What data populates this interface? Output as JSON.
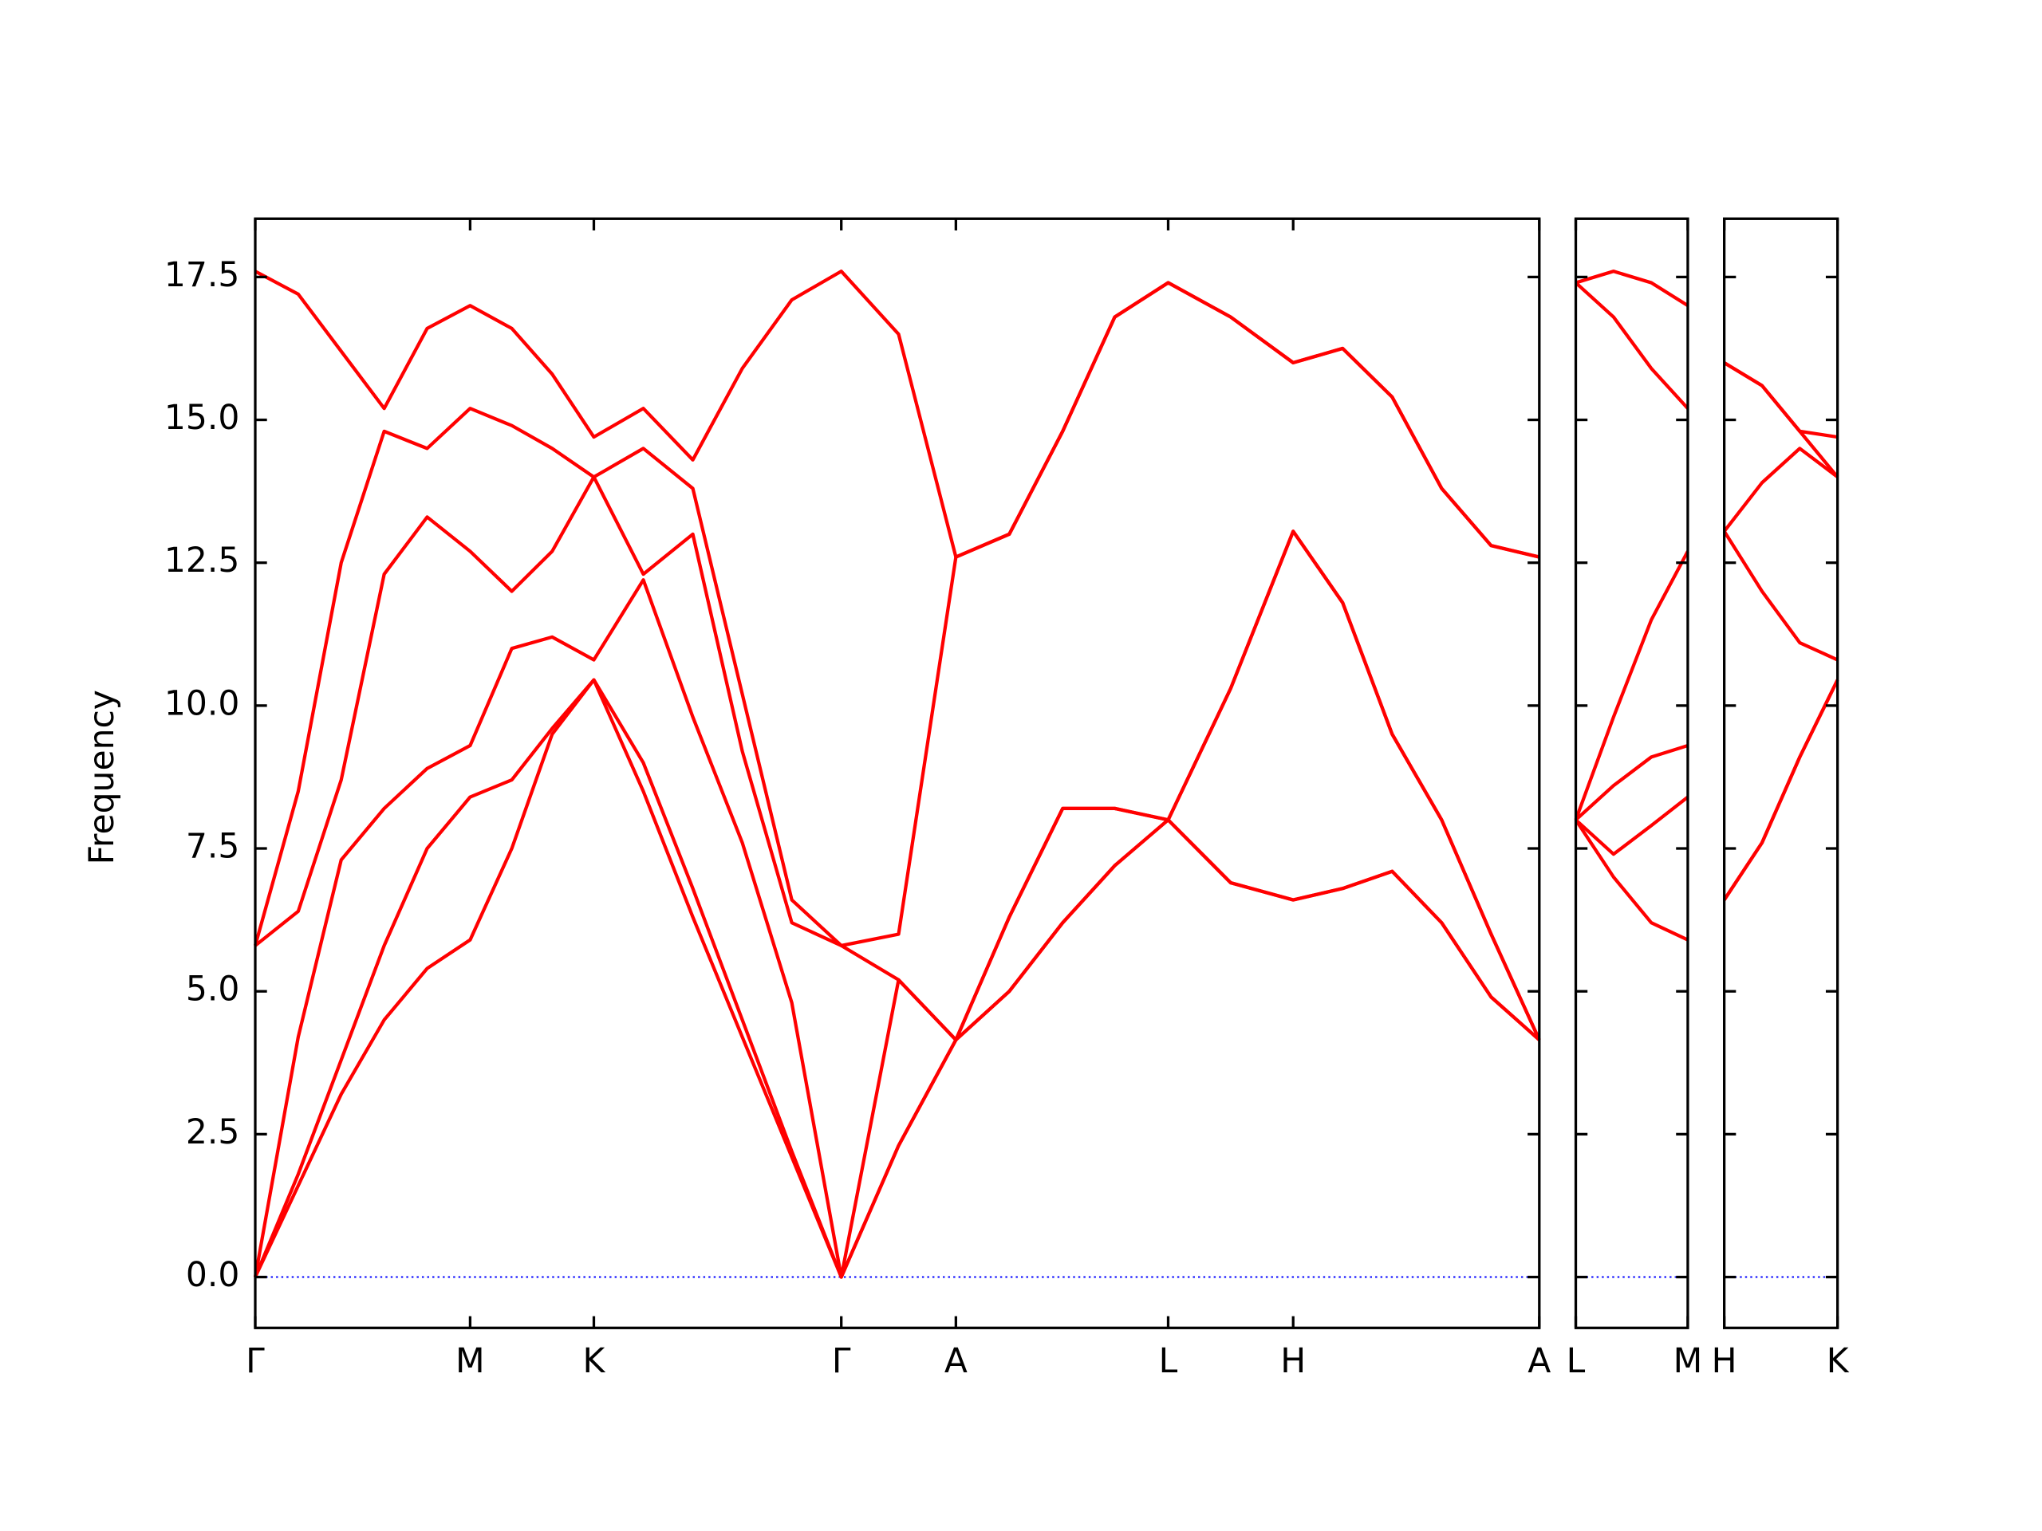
{
  "chart_data": [
    {
      "type": "line",
      "ylabel": "Frequency",
      "ylim": [
        -0.89,
        18.52
      ],
      "yticks": [
        {
          "value": 0,
          "label": "0.0"
        },
        2.5,
        {
          "value": 5,
          "label": "5.0"
        },
        7.5,
        {
          "value": 10,
          "label": "10.0"
        },
        12.5,
        {
          "value": 15,
          "label": "15.0"
        },
        17.5
      ],
      "hline": 0,
      "hline_color": "#0000ff",
      "xlim": [
        0,
        9.86
      ],
      "xticks": [
        {
          "value": 0,
          "label": "Γ"
        },
        {
          "value": 1.65,
          "label": "M"
        },
        {
          "value": 2.6,
          "label": "K"
        },
        {
          "value": 4.5,
          "label": "Γ"
        },
        {
          "value": 5.38,
          "label": "A"
        },
        {
          "value": 7.01,
          "label": "L"
        },
        {
          "value": 7.97,
          "label": "H"
        },
        {
          "value": 9.86,
          "label": "A"
        }
      ],
      "x": [
        0,
        0.33,
        0.66,
        0.99,
        1.32,
        1.65,
        1.97,
        2.28,
        2.6,
        2.98,
        3.36,
        3.74,
        4.12,
        4.5,
        4.94,
        5.38,
        5.79,
        6.2,
        6.6,
        7.01,
        7.49,
        7.97,
        8.35,
        8.73,
        9.11,
        9.49,
        9.86
      ],
      "series": [
        {
          "color": "#ff0000",
          "values": [
            0,
            1.6,
            3.2,
            4.5,
            5.4,
            5.9,
            7.5,
            9.5,
            10.45,
            8.5,
            6.3,
            4.2,
            2.1,
            0,
            2.3,
            4.15,
            5.0,
            6.2,
            7.2,
            8.0,
            6.9,
            6.6,
            6.8,
            7.1,
            6.2,
            4.9,
            4.15
          ]
        },
        {
          "color": "#ff0000",
          "values": [
            0,
            1.8,
            3.8,
            5.8,
            7.5,
            8.4,
            8.7,
            9.6,
            10.45,
            9.0,
            6.8,
            4.5,
            2.2,
            0,
            2.3,
            4.15,
            5.0,
            6.2,
            7.2,
            8.0,
            6.9,
            6.6,
            6.8,
            7.1,
            6.2,
            4.9,
            4.15
          ]
        },
        {
          "color": "#ff0000",
          "values": [
            0,
            4.2,
            7.3,
            8.2,
            8.9,
            9.3,
            11.0,
            11.2,
            10.8,
            12.2,
            9.8,
            7.6,
            4.8,
            0,
            5.2,
            4.15,
            6.3,
            8.2,
            8.2,
            8.0,
            10.3,
            13.05,
            11.8,
            9.5,
            8.0,
            6.0,
            4.15
          ]
        },
        {
          "color": "#ff0000",
          "values": [
            5.8,
            6.4,
            8.7,
            12.3,
            13.3,
            12.7,
            12.0,
            12.7,
            14.0,
            12.3,
            13.0,
            9.2,
            6.2,
            5.8,
            5.2,
            4.15,
            6.3,
            8.2,
            8.2,
            8.0,
            10.3,
            13.05,
            11.8,
            9.5,
            8.0,
            6.0,
            4.15
          ]
        },
        {
          "color": "#ff0000",
          "values": [
            5.8,
            8.5,
            12.5,
            14.8,
            14.5,
            15.2,
            14.9,
            14.5,
            14.0,
            14.5,
            13.8,
            10.2,
            6.6,
            5.8,
            6.0,
            12.6,
            13.0,
            14.8,
            16.8,
            17.4,
            16.8,
            16.0,
            16.25,
            15.4,
            13.8,
            12.8,
            12.6
          ]
        },
        {
          "color": "#ff0000",
          "values": [
            17.6,
            17.2,
            16.2,
            15.2,
            16.6,
            17.0,
            16.6,
            15.8,
            14.7,
            15.2,
            14.3,
            15.9,
            17.1,
            17.6,
            16.5,
            12.6,
            13.0,
            14.8,
            16.8,
            17.4,
            16.8,
            16.0,
            16.25,
            15.4,
            13.8,
            12.8,
            12.6
          ]
        }
      ]
    },
    {
      "type": "line",
      "xlim": [
        0,
        0.86
      ],
      "xticks": [
        {
          "value": 0,
          "label": "L"
        },
        {
          "value": 0.86,
          "label": "M"
        }
      ],
      "x": [
        0,
        0.29,
        0.58,
        0.86
      ],
      "series": [
        {
          "color": "#ff0000",
          "values": [
            8.0,
            7.0,
            6.2,
            5.9
          ]
        },
        {
          "color": "#ff0000",
          "values": [
            8.0,
            7.4,
            7.9,
            8.4
          ]
        },
        {
          "color": "#ff0000",
          "values": [
            8.0,
            8.6,
            9.1,
            9.3
          ]
        },
        {
          "color": "#ff0000",
          "values": [
            8.0,
            9.8,
            11.5,
            12.7
          ]
        },
        {
          "color": "#ff0000",
          "values": [
            17.4,
            16.8,
            15.9,
            15.2
          ]
        },
        {
          "color": "#ff0000",
          "values": [
            17.4,
            17.6,
            17.4,
            17.0
          ]
        }
      ]
    },
    {
      "type": "line",
      "xlim": [
        0,
        0.87
      ],
      "xticks": [
        {
          "value": 0,
          "label": "H"
        },
        {
          "value": 0.87,
          "label": "K"
        }
      ],
      "x": [
        0,
        0.29,
        0.58,
        0.87
      ],
      "series": [
        {
          "color": "#ff0000",
          "values": [
            6.6,
            7.6,
            9.1,
            10.45
          ]
        },
        {
          "color": "#ff0000",
          "values": [
            6.6,
            7.6,
            9.1,
            10.45
          ]
        },
        {
          "color": "#ff0000",
          "values": [
            13.05,
            12.0,
            11.1,
            10.8
          ]
        },
        {
          "color": "#ff0000",
          "values": [
            13.05,
            13.9,
            14.5,
            14.0
          ]
        },
        {
          "color": "#ff0000",
          "values": [
            16.0,
            15.6,
            14.8,
            14.0
          ]
        },
        {
          "color": "#ff0000",
          "values": [
            16.0,
            15.6,
            14.8,
            14.7
          ]
        }
      ]
    }
  ]
}
